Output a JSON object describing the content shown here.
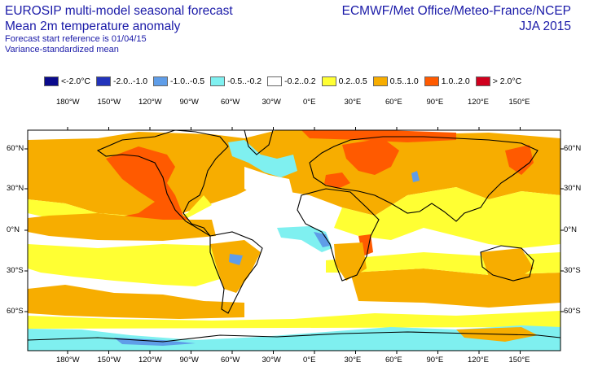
{
  "header": {
    "title_line1": "EUROSIP multi-model seasonal forecast",
    "title_line2": "Mean 2m temperature anomaly",
    "subtitle_line1": "Forecast start reference is 01/04/15",
    "subtitle_line2": "Variance-standardized mean",
    "provider": "ECMWF/Met Office/Meteo-France/NCEP",
    "season": "JJA 2015"
  },
  "legend": [
    {
      "label": "<-2.0°C",
      "color": "#0a0a8c"
    },
    {
      "label": "-2.0..-1.0",
      "color": "#2233bb"
    },
    {
      "label": "-1.0..-0.5",
      "color": "#5f9de8"
    },
    {
      "label": "-0.5..-0.2",
      "color": "#7ff0f0"
    },
    {
      "label": "-0.2..0.2",
      "color": "#ffffff"
    },
    {
      "label": "0.2..0.5",
      "color": "#ffff33"
    },
    {
      "label": "0.5..1.0",
      "color": "#f7ad00"
    },
    {
      "label": "1.0..2.0",
      "color": "#ff5a00"
    },
    {
      "label": "> 2.0°C",
      "color": "#d0001e"
    }
  ],
  "axes": {
    "lon_labels": [
      "180°W",
      "150°W",
      "120°W",
      "90°W",
      "60°W",
      "30°W",
      "0°E",
      "30°E",
      "60°E",
      "90°E",
      "120°E",
      "150°E"
    ],
    "lat_labels": [
      "60°N",
      "30°N",
      "0°N",
      "30°S",
      "60°S"
    ]
  }
}
